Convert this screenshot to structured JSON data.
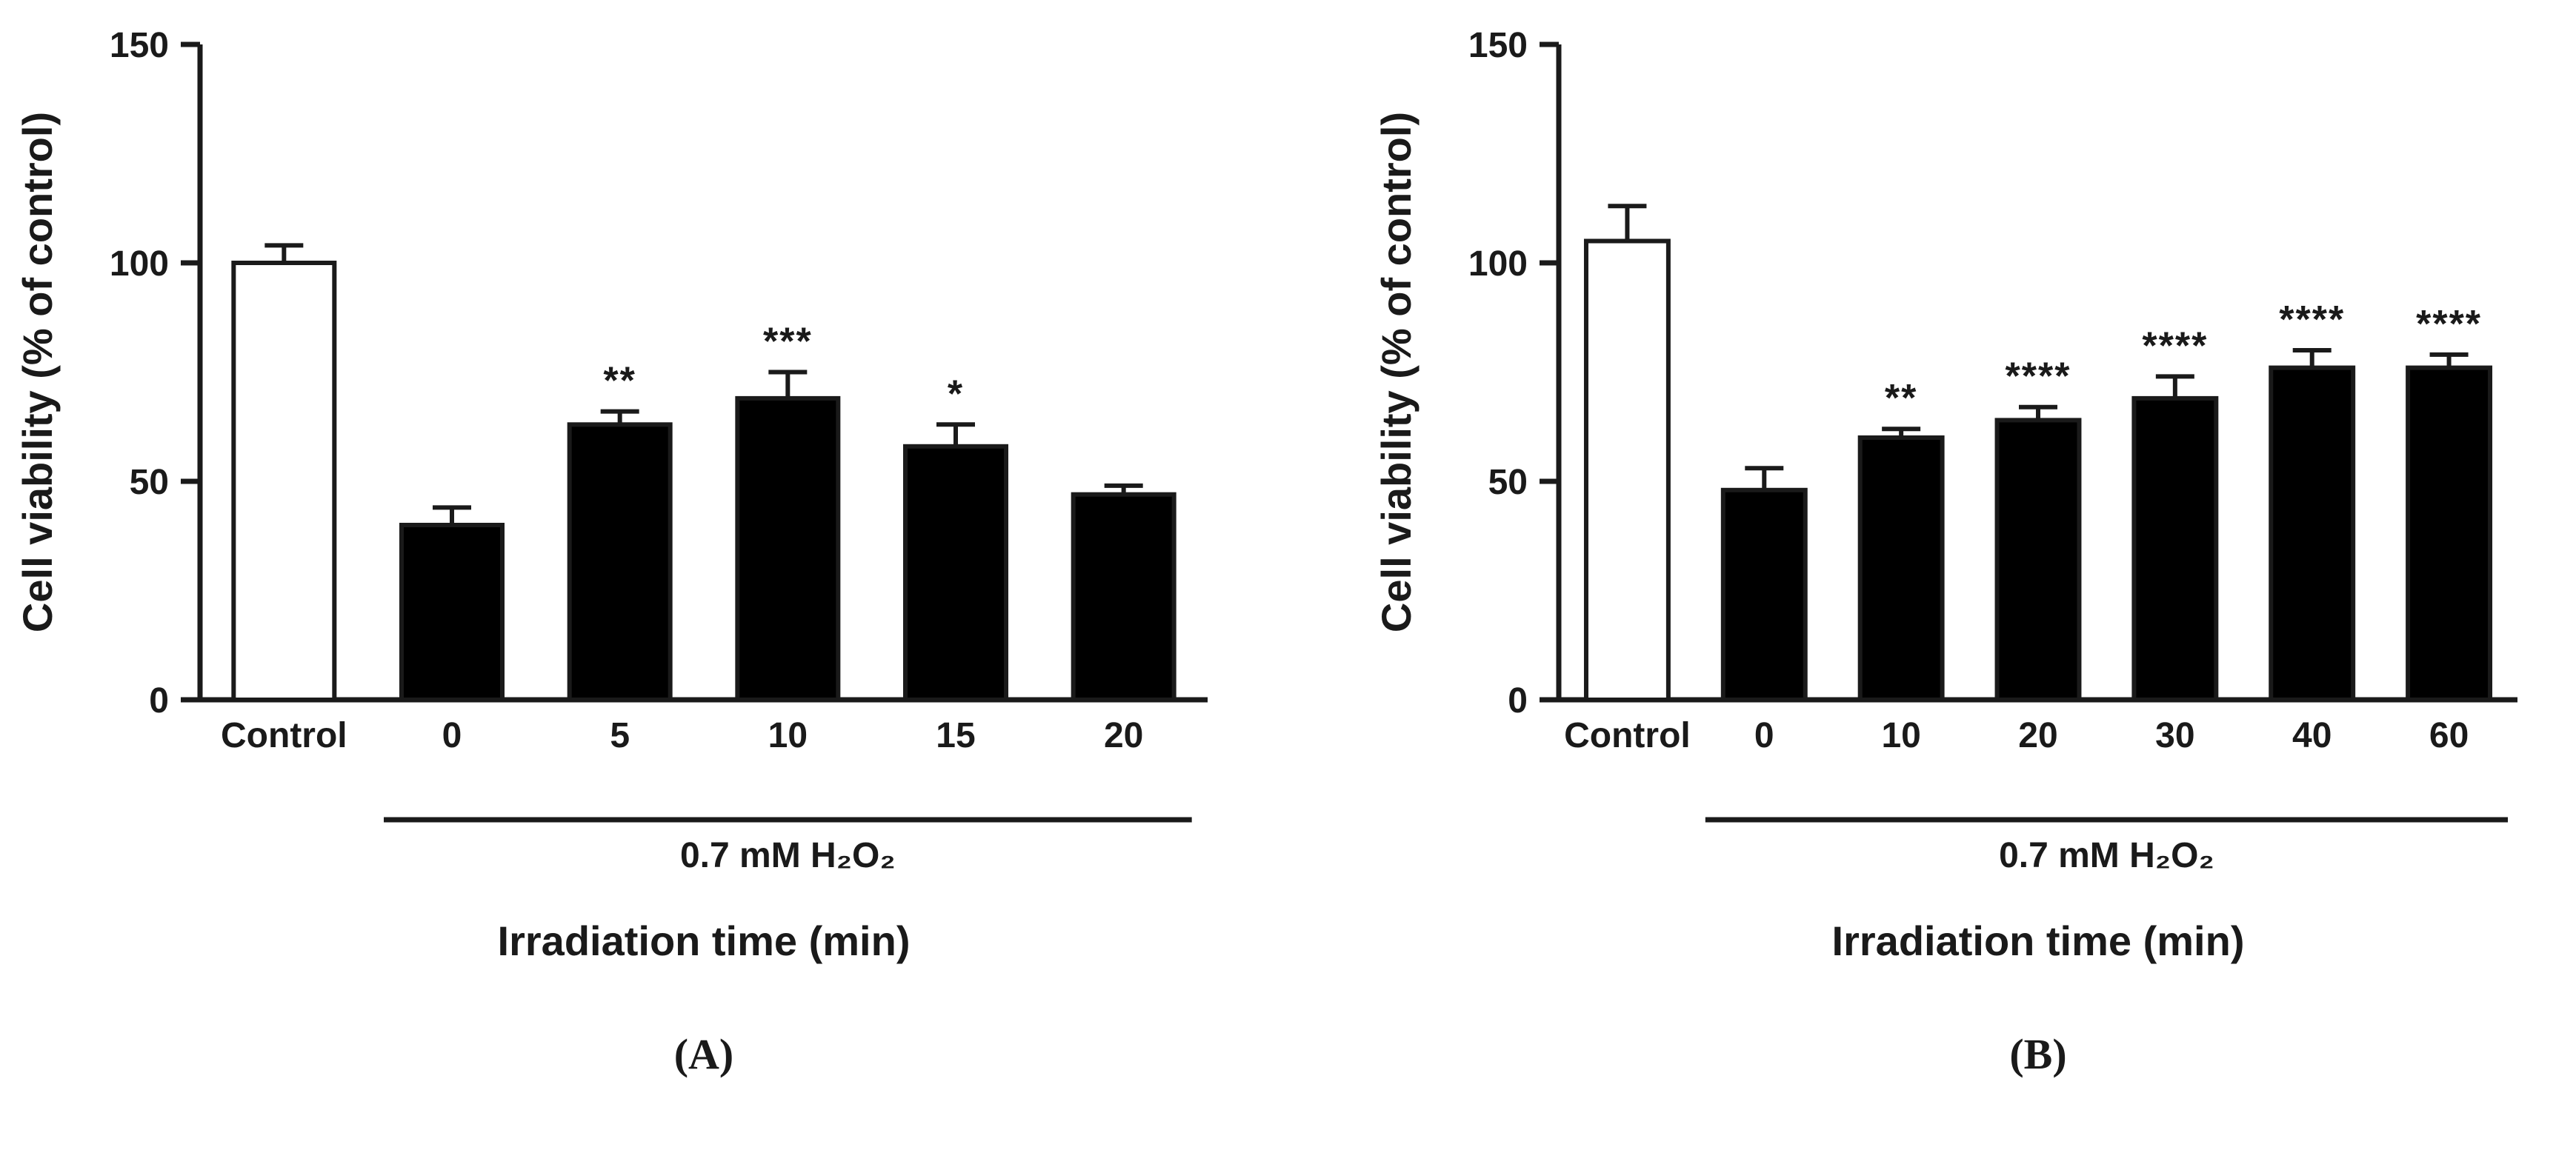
{
  "figure": {
    "description": "Cell viability bar charts under 0.7 mM H2O2 with varying irradiation time"
  },
  "chart_data": [
    {
      "type": "bar",
      "panel_label": "(A)",
      "title": "",
      "ylabel": "Cell viability (% of control)",
      "xlabel": "Irradiation time (min)",
      "treatment_label": "0.7 mM H₂O₂",
      "ylim": [
        0,
        150
      ],
      "yticks": [
        0,
        50,
        100,
        150
      ],
      "grid": false,
      "legend": "none",
      "categories": [
        "Control",
        "0",
        "5",
        "10",
        "15",
        "20"
      ],
      "values": [
        100,
        40,
        63,
        69,
        58,
        47
      ],
      "errors": [
        4,
        4,
        3,
        6,
        5,
        2
      ],
      "significance": [
        "",
        "",
        "**",
        "***",
        "*",
        ""
      ],
      "bar_colors": [
        "#ffffff",
        "#000000",
        "#000000",
        "#000000",
        "#000000",
        "#000000"
      ],
      "axis_color": "#1a1a1a"
    },
    {
      "type": "bar",
      "panel_label": "(B)",
      "title": "",
      "ylabel": "Cell viability (% of control)",
      "xlabel": "Irradiation time (min)",
      "treatment_label": "0.7 mM H₂O₂",
      "ylim": [
        0,
        150
      ],
      "yticks": [
        0,
        50,
        100,
        150
      ],
      "grid": false,
      "legend": "none",
      "categories": [
        "Control",
        "0",
        "10",
        "20",
        "30",
        "40",
        "60"
      ],
      "values": [
        105,
        48,
        60,
        64,
        69,
        76,
        76
      ],
      "errors": [
        8,
        5,
        2,
        3,
        5,
        4,
        3
      ],
      "significance": [
        "",
        "",
        "**",
        "****",
        "****",
        "****",
        "****"
      ],
      "bar_colors": [
        "#ffffff",
        "#000000",
        "#000000",
        "#000000",
        "#000000",
        "#000000",
        "#000000"
      ],
      "axis_color": "#1a1a1a"
    }
  ]
}
